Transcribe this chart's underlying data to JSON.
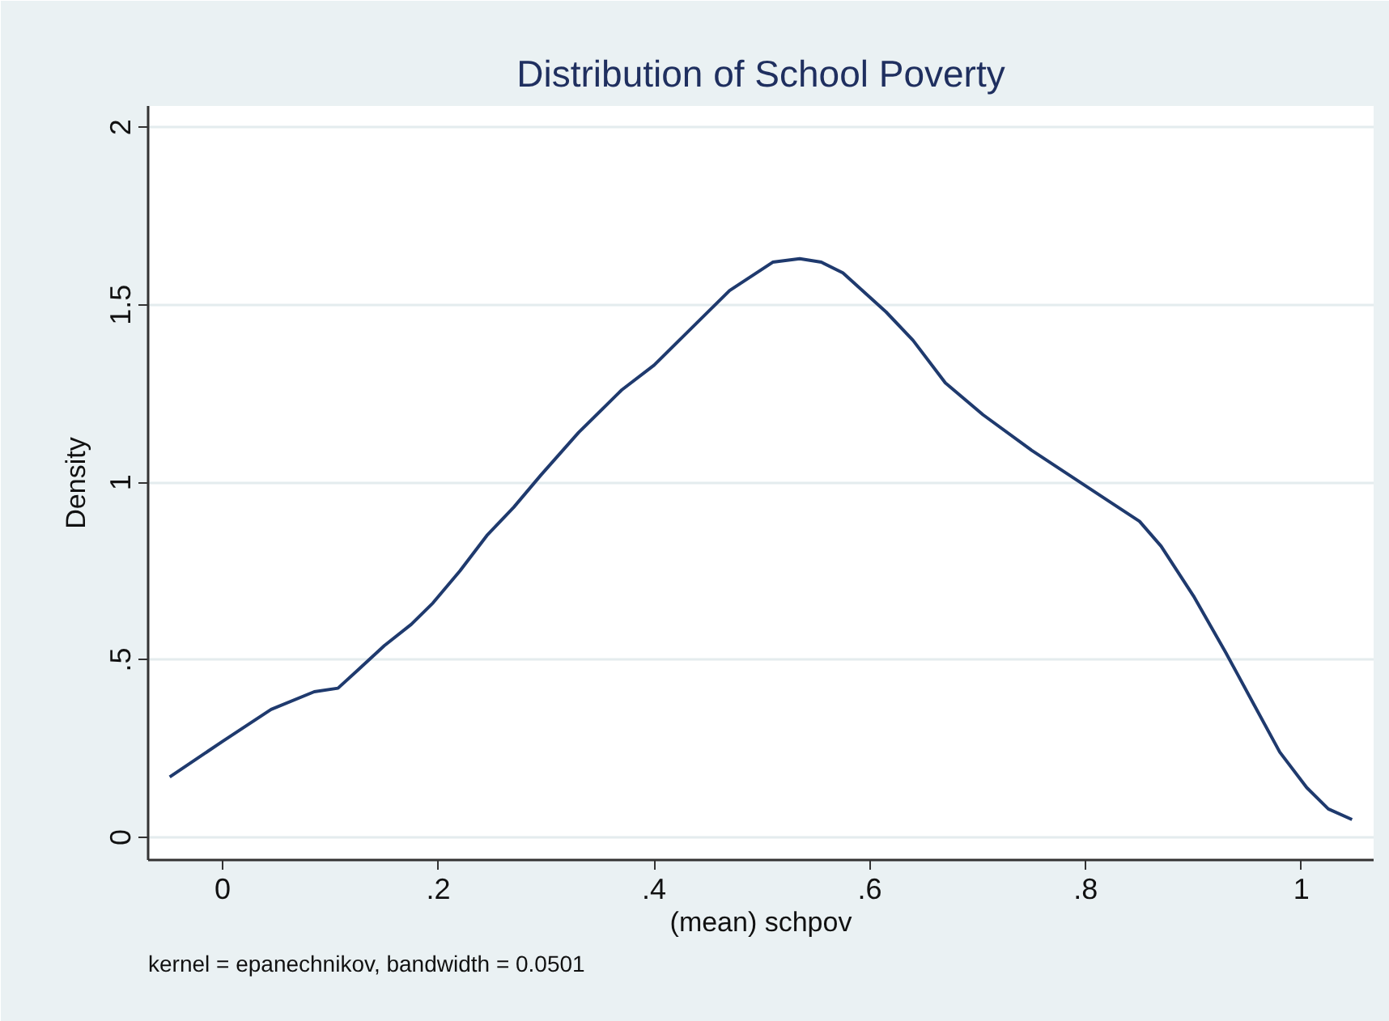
{
  "chart_data": {
    "type": "line",
    "title": "Distribution of School Poverty",
    "xlabel": "(mean) schpov",
    "ylabel": "Density",
    "annotations": [
      "kernel = epanechnikov, bandwidth = 0.0501"
    ],
    "x": [
      -0.049,
      0,
      0.045,
      0.085,
      0.107,
      0.125,
      0.15,
      0.175,
      0.195,
      0.22,
      0.245,
      0.27,
      0.295,
      0.33,
      0.37,
      0.4,
      0.44,
      0.47,
      0.51,
      0.535,
      0.555,
      0.575,
      0.615,
      0.64,
      0.67,
      0.705,
      0.75,
      0.785,
      0.82,
      0.85,
      0.87,
      0.9,
      0.93,
      0.955,
      0.98,
      1.005,
      1.025,
      1.047
    ],
    "series": [
      {
        "color": "#1f3a6e",
        "values": [
          0.17,
          0.27,
          0.36,
          0.41,
          0.42,
          0.47,
          0.54,
          0.6,
          0.66,
          0.75,
          0.85,
          0.93,
          1.02,
          1.14,
          1.26,
          1.33,
          1.45,
          1.54,
          1.62,
          1.63,
          1.62,
          1.59,
          1.48,
          1.4,
          1.28,
          1.19,
          1.09,
          1.02,
          0.95,
          0.89,
          0.82,
          0.68,
          0.52,
          0.38,
          0.24,
          0.14,
          0.08,
          0.05
        ]
      }
    ],
    "xlim": [
      -0.069,
      1.067
    ],
    "ylim": [
      -0.064,
      2.06
    ],
    "xticks": [
      0,
      {
        "value": 0.2,
        "label": ".2"
      },
      {
        "value": 0.4,
        "label": ".4"
      },
      {
        "value": 0.6,
        "label": ".6"
      },
      {
        "value": 0.8,
        "label": ".8"
      },
      1
    ],
    "yticks": [
      0,
      {
        "value": 0.5,
        "label": ".5"
      },
      1,
      1.5,
      2
    ],
    "grid": "y",
    "line_style": "solid"
  }
}
